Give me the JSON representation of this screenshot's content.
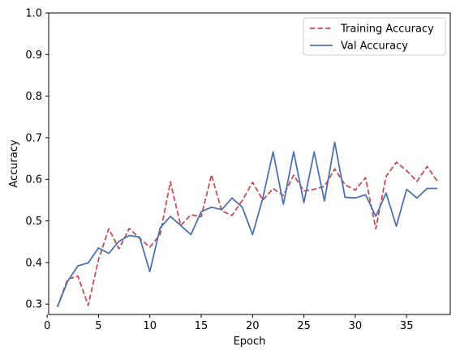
{
  "chart_data": {
    "type": "line",
    "title": "",
    "xlabel": "Epoch",
    "ylabel": "Accuracy",
    "xlim": [
      0.15,
      39.25
    ],
    "ylim": [
      0.275,
      1.0
    ],
    "x_ticks": [
      0,
      5,
      10,
      15,
      20,
      25,
      30,
      35
    ],
    "y_ticks": [
      0.3,
      0.4,
      0.5,
      0.6,
      0.7,
      0.8,
      0.9,
      1.0
    ],
    "x_tick_labels": [
      "0",
      "5",
      "10",
      "15",
      "20",
      "25",
      "30",
      "35"
    ],
    "y_tick_labels": [
      "0.3",
      "0.4",
      "0.5",
      "0.6",
      "0.7",
      "0.8",
      "0.9",
      "1.0"
    ],
    "legend_position": "top-right",
    "x": [
      1,
      2,
      3,
      4,
      5,
      6,
      7,
      8,
      9,
      10,
      11,
      12,
      13,
      14,
      15,
      16,
      17,
      18,
      19,
      20,
      21,
      22,
      23,
      24,
      25,
      26,
      27,
      28,
      29,
      30,
      31,
      32,
      33,
      34,
      35,
      36,
      37,
      38
    ],
    "series": [
      {
        "name": "Training Accuracy",
        "color": "#c44e52",
        "style": "dashed",
        "values": [
          0.293,
          0.36,
          0.367,
          0.297,
          0.407,
          0.481,
          0.433,
          0.482,
          0.458,
          0.437,
          0.467,
          0.594,
          0.489,
          0.515,
          0.51,
          0.611,
          0.524,
          0.513,
          0.549,
          0.593,
          0.55,
          0.578,
          0.561,
          0.61,
          0.572,
          0.576,
          0.583,
          0.625,
          0.587,
          0.574,
          0.604,
          0.481,
          0.607,
          0.641,
          0.621,
          0.595,
          0.631,
          0.595
        ]
      },
      {
        "name": "Val Accuracy",
        "color": "#4c72b0",
        "style": "solid",
        "values": [
          0.293,
          0.355,
          0.392,
          0.399,
          0.435,
          0.422,
          0.451,
          0.465,
          0.461,
          0.378,
          0.483,
          0.511,
          0.489,
          0.467,
          0.522,
          0.533,
          0.527,
          0.555,
          0.533,
          0.467,
          0.555,
          0.666,
          0.54,
          0.666,
          0.544,
          0.666,
          0.548,
          0.689,
          0.557,
          0.555,
          0.563,
          0.511,
          0.567,
          0.487,
          0.576,
          0.555,
          0.578,
          0.578
        ]
      }
    ]
  }
}
